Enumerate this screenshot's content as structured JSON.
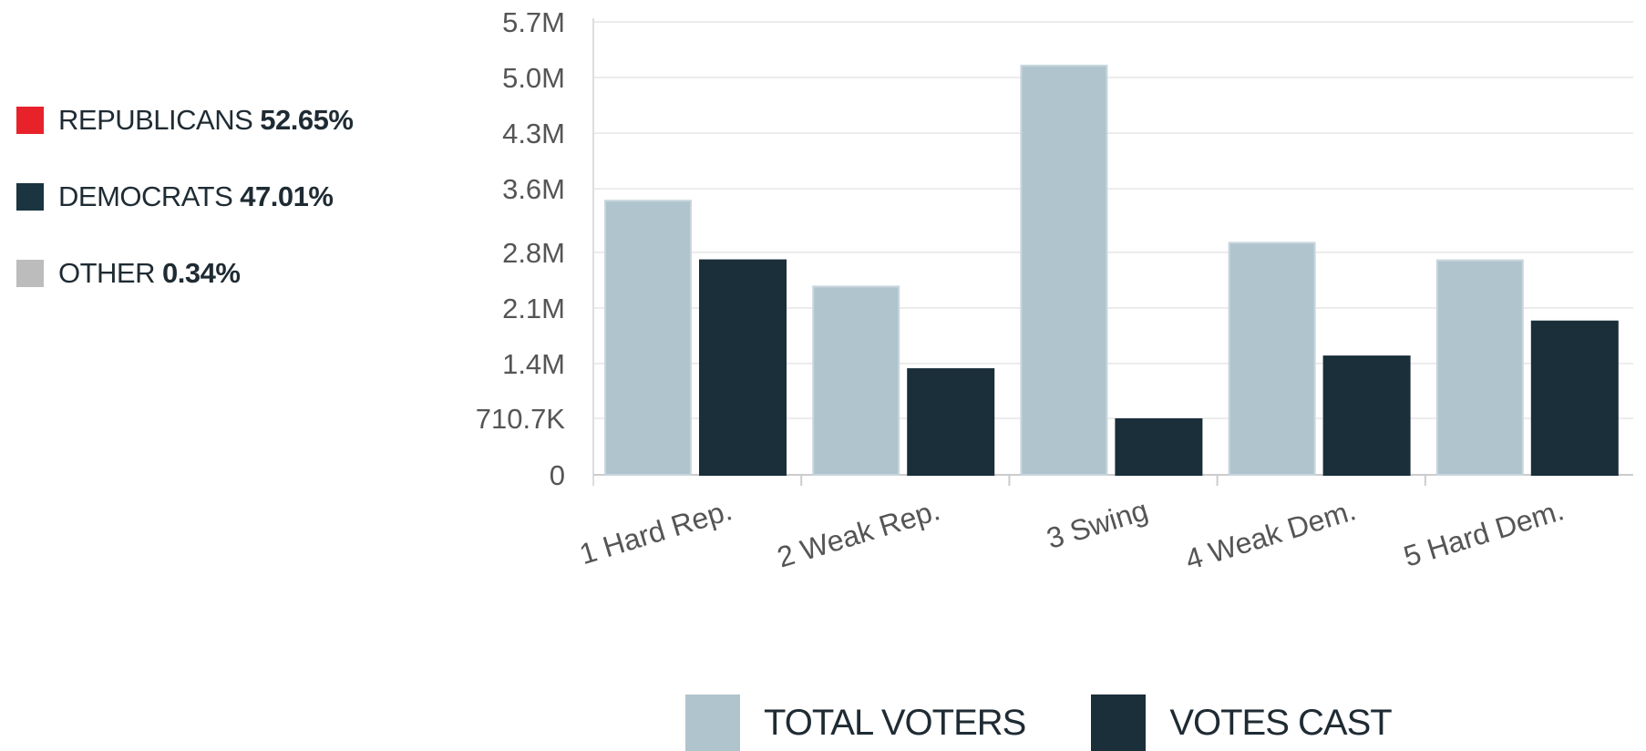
{
  "party_legend": [
    {
      "name": "REPUBLICANS",
      "pct": "52.65%",
      "color": "#e8222b"
    },
    {
      "name": "DEMOCRATS",
      "pct": "47.01%",
      "color": "#1a3440"
    },
    {
      "name": "OTHER",
      "pct": "0.34%",
      "color": "#bcbcbc"
    }
  ],
  "chart_data": {
    "type": "bar",
    "categories": [
      "1 Hard Rep.",
      "2 Weak Rep.",
      "3 Swing",
      "4 Weak Dem.",
      "5 Hard Dem."
    ],
    "series": [
      {
        "name": "TOTAL VOTERS",
        "color": "#b0c4ce",
        "values": [
          3450000,
          2370000,
          5150000,
          2920000,
          2700000
        ]
      },
      {
        "name": "VOTES CAST",
        "color": "#1a2f3a",
        "values": [
          2700000,
          1330000,
          700000,
          1490000,
          1930000
        ]
      }
    ],
    "yticks": [
      0,
      710700,
      1400000,
      2100000,
      2800000,
      3600000,
      4300000,
      5000000,
      5700000
    ],
    "ytick_labels": [
      "0",
      "710.7K",
      "1.4M",
      "2.1M",
      "2.8M",
      "3.6M",
      "4.3M",
      "5.0M",
      "5.7M"
    ],
    "ylim": [
      0,
      5700000
    ],
    "grid": true,
    "legend": "bottom"
  }
}
